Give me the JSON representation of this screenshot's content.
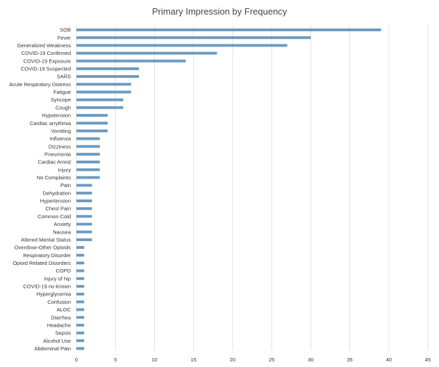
{
  "chart_data": {
    "type": "bar",
    "orientation": "horizontal",
    "title": "Primary Impression by Frequency",
    "xlabel": "",
    "ylabel": "",
    "xlim": [
      0,
      45
    ],
    "x_ticks": [
      0,
      5,
      10,
      15,
      20,
      25,
      30,
      35,
      40,
      45
    ],
    "grid": true,
    "legend": "none",
    "bar_color": "#6e9bc0",
    "categories": [
      "SOB",
      "Fever",
      "Generalized Weakness",
      "COVID-19 Confirmed",
      "COVID-19 Exposure",
      "COVID-19 Suspected",
      "SARS",
      "Acute Respiratory Distress",
      "Fatigue",
      "Syncope",
      "Cough",
      "Hypotension",
      "Cardiac arrythmia",
      "Vomiting",
      "Influenza",
      "Dizziness",
      "Pneumonia",
      "Cardiac Arrest",
      "Injury",
      "No Complaints",
      "Pain",
      "Dehydration",
      "Hypertension",
      "Chest Pain",
      "Common Cold",
      "Anxiety",
      "Nausea",
      "Altered Mental Status",
      "Overdose-Other Opioids",
      "Respiratory Disorder",
      "Opioid Related Disorders",
      "COPD",
      "Injury of hip",
      "COVID-19 no known",
      "Hyperglycemia",
      "Confusion",
      "ALOC",
      "Diarrhea",
      "Headache",
      "Sepsis",
      "Alcohol Use",
      "Abdominal Pain"
    ],
    "values": [
      39,
      30,
      27,
      18,
      14,
      8,
      8,
      7,
      7,
      6,
      6,
      4,
      4,
      4,
      3,
      3,
      3,
      3,
      3,
      3,
      2,
      2,
      2,
      2,
      2,
      2,
      2,
      2,
      1,
      1,
      1,
      1,
      1,
      1,
      1,
      1,
      1,
      1,
      1,
      1,
      1,
      1
    ]
  }
}
